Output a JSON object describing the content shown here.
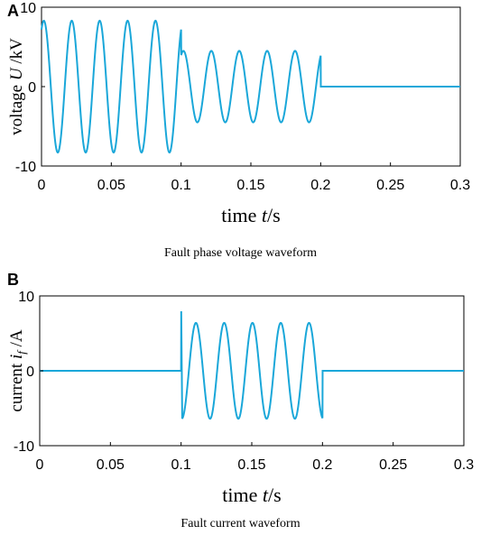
{
  "chart_data": [
    {
      "type": "line",
      "panel": "A",
      "xlabel_text": "time ",
      "xlabel_var": "t",
      "xlabel_unit": "/s",
      "ylabel_text": "voltage ",
      "ylabel_var": "U",
      "ylabel_unit": " /kV",
      "caption": "Fault phase voltage waveform",
      "xlim": [
        0,
        0.3
      ],
      "ylim": [
        -10,
        10
      ],
      "xticks": [
        "0",
        "0.05",
        "0.1",
        "0.15",
        "0.2",
        "0.25",
        "0.3"
      ],
      "yticks": [
        "10",
        "0",
        "-10"
      ],
      "color": "#1AA7D9",
      "series": [
        {
          "segments": [
            {
              "x_start": 0,
              "x_end": 0.1,
              "amplitude": 8.3,
              "frequency_hz": 50,
              "phase_deg": 60
            },
            {
              "x_start": 0.1,
              "x_end": 0.2,
              "amplitude": 4.5,
              "offset": 0,
              "frequency_hz": 50,
              "phase_deg": 60,
              "note": "reduced amplitude"
            },
            {
              "x_start": 0.2,
              "x_end": 0.3,
              "constant": 0
            }
          ]
        }
      ]
    },
    {
      "type": "line",
      "panel": "B",
      "xlabel_text": "time  ",
      "xlabel_var": "t",
      "xlabel_unit": "/s",
      "ylabel_text": "current ",
      "ylabel_var": "i",
      "ylabel_sub": "f",
      "ylabel_unit": " /A",
      "caption": "Fault current waveform",
      "xlim": [
        0,
        0.3
      ],
      "ylim": [
        -10,
        10
      ],
      "xticks": [
        "0",
        "0.05",
        "0.1",
        "0.15",
        "0.2",
        "0.25",
        "0.3"
      ],
      "yticks": [
        "10",
        "0",
        "-10"
      ],
      "color": "#1AA7D9",
      "series": [
        {
          "segments": [
            {
              "x_start": 0,
              "x_end": 0.1,
              "constant": 0
            },
            {
              "x_start": 0.1,
              "x_end": 0.2,
              "amplitude": 6.4,
              "frequency_hz": 50,
              "spike": 10
            },
            {
              "x_start": 0.2,
              "x_end": 0.3,
              "constant": 0
            }
          ]
        }
      ]
    }
  ]
}
